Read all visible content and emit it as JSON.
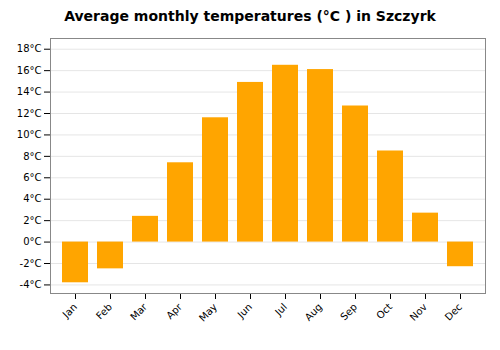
{
  "chart_data": {
    "type": "bar",
    "title": "Average monthly temperatures (°C ) in Szczyrk",
    "categories": [
      "Jan",
      "Feb",
      "Mar",
      "Apr",
      "May",
      "Jun",
      "Jul",
      "Aug",
      "Sep",
      "Oct",
      "Nov",
      "Dec"
    ],
    "values": [
      -3.8,
      -2.5,
      2.4,
      7.4,
      11.6,
      14.9,
      16.5,
      16.1,
      12.7,
      8.5,
      2.7,
      -2.3
    ],
    "color": "#FFA500",
    "ylim": [
      -4.8,
      19.0
    ],
    "yticks": [
      {
        "value": -4,
        "label": "-4°C"
      },
      {
        "value": -2,
        "label": "-2°C"
      },
      {
        "value": 0,
        "label": "0°C"
      },
      {
        "value": 2,
        "label": "2°C"
      },
      {
        "value": 4,
        "label": "4°C"
      },
      {
        "value": 6,
        "label": "6°C"
      },
      {
        "value": 8,
        "label": "8°C"
      },
      {
        "value": 10,
        "label": "10°C"
      },
      {
        "value": 12,
        "label": "12°C"
      },
      {
        "value": 14,
        "label": "14°C"
      },
      {
        "value": 16,
        "label": "16°C"
      },
      {
        "value": 18,
        "label": "18°C"
      }
    ],
    "grid": true
  }
}
